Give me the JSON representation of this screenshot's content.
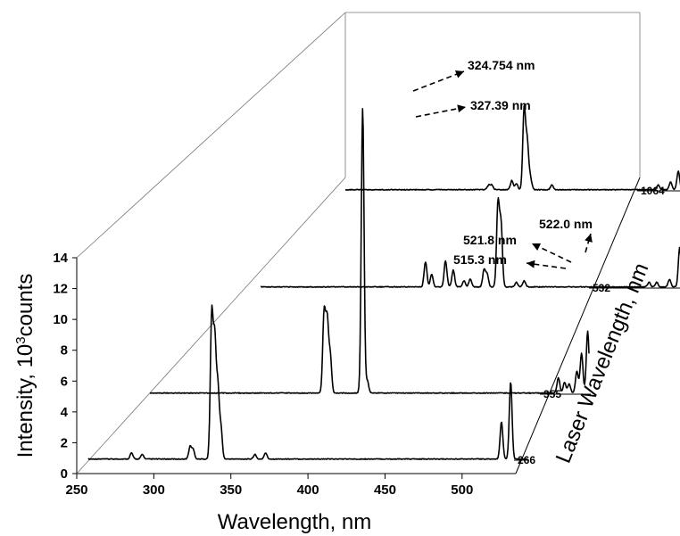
{
  "chart_data": {
    "type": "line",
    "style": "3d-waterfall",
    "xlabel": "Wavelength,  nm",
    "ylabel": "Intensity,  10³counts",
    "zlabel": "Laser Wavelength,  nm",
    "xlim": [
      250,
      530
    ],
    "ylim": [
      0,
      14
    ],
    "x_ticks": [
      "250",
      "300",
      "350",
      "400",
      "450",
      "500"
    ],
    "y_ticks": [
      "0",
      "2",
      "4",
      "6",
      "8",
      "10",
      "12",
      "14"
    ],
    "grid": false,
    "series": [
      {
        "name": "266",
        "peaks": [
          {
            "x": 278,
            "y": 0.4
          },
          {
            "x": 285,
            "y": 0.3
          },
          {
            "x": 316,
            "y": 0.8
          },
          {
            "x": 318,
            "y": 0.6
          },
          {
            "x": 330,
            "y": 9.2
          },
          {
            "x": 332,
            "y": 7.4
          },
          {
            "x": 334,
            "y": 4.5
          },
          {
            "x": 336,
            "y": 2.0
          },
          {
            "x": 358,
            "y": 0.3
          },
          {
            "x": 365,
            "y": 0.4
          },
          {
            "x": 518,
            "y": 2.4
          },
          {
            "x": 524,
            "y": 5.0
          }
        ]
      },
      {
        "name": "355",
        "peaks": [
          {
            "x": 363,
            "y": 5.2
          },
          {
            "x": 365,
            "y": 4.6
          },
          {
            "x": 367,
            "y": 2.4
          },
          {
            "x": 388,
            "y": 18.5
          },
          {
            "x": 391,
            "y": 0.8
          },
          {
            "x": 515,
            "y": 1.0
          },
          {
            "x": 519,
            "y": 0.7
          },
          {
            "x": 522,
            "y": 0.6
          },
          {
            "x": 527,
            "y": 1.4
          },
          {
            "x": 530,
            "y": 2.6
          },
          {
            "x": 534,
            "y": 4.0
          }
        ]
      },
      {
        "name": "532",
        "peaks": [
          {
            "x": 357,
            "y": 1.6
          },
          {
            "x": 361,
            "y": 0.8
          },
          {
            "x": 370,
            "y": 1.7
          },
          {
            "x": 375,
            "y": 1.1
          },
          {
            "x": 382,
            "y": 0.4
          },
          {
            "x": 386,
            "y": 0.5
          },
          {
            "x": 395,
            "y": 1.1
          },
          {
            "x": 397,
            "y": 0.8
          },
          {
            "x": 404,
            "y": 5.4
          },
          {
            "x": 406,
            "y": 4.0
          },
          {
            "x": 416,
            "y": 0.3
          },
          {
            "x": 421,
            "y": 0.4
          },
          {
            "x": 502,
            "y": 0.3
          },
          {
            "x": 507,
            "y": 0.3
          },
          {
            "x": 515.3,
            "y": 0.5
          },
          {
            "x": 521.8,
            "y": 0.8
          },
          {
            "x": 522.0,
            "y": 1.8
          }
        ]
      },
      {
        "name": "1064",
        "peaks": [
          {
            "x": 343,
            "y": 0.3
          },
          {
            "x": 345,
            "y": 0.3
          },
          {
            "x": 358,
            "y": 0.6
          },
          {
            "x": 361,
            "y": 0.4
          },
          {
            "x": 366,
            "y": 5.2
          },
          {
            "x": 368,
            "y": 3.0
          },
          {
            "x": 370,
            "y": 0.8
          },
          {
            "x": 384,
            "y": 0.3
          },
          {
            "x": 453,
            "y": 0.3
          },
          {
            "x": 461,
            "y": 0.5
          },
          {
            "x": 466,
            "y": 1.2
          },
          {
            "x": 472,
            "y": 2.0
          }
        ]
      }
    ],
    "annotations": [
      {
        "text": "324.754 nm",
        "series": "1064"
      },
      {
        "text": "327.39 nm",
        "series": "1064"
      },
      {
        "text": "522.0 nm",
        "series": "532"
      },
      {
        "text": "521.8 nm",
        "series": "532"
      },
      {
        "text": "515.3 nm",
        "series": "532"
      }
    ]
  }
}
